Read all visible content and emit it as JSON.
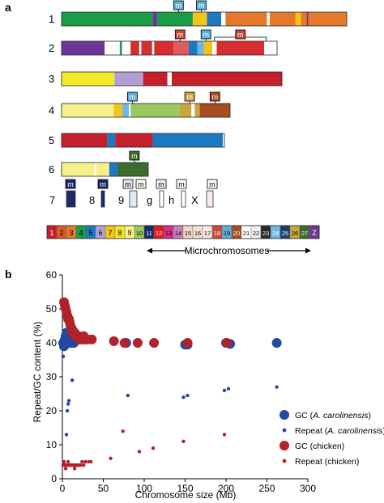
{
  "panel_a": {
    "label": "a",
    "chromosomes": [
      {
        "label": "1",
        "segments": [
          [
            "#1a9d47",
            0,
            0.32
          ],
          [
            "#6f3399",
            0.32,
            0.335
          ],
          [
            "#1a9d47",
            0.335,
            0.46
          ],
          [
            "#f2c31a",
            0.46,
            0.51
          ],
          [
            "#1d78c2",
            0.51,
            0.56
          ],
          [
            "#ffffff",
            0.56,
            0.575
          ],
          [
            "#e6782b",
            0.575,
            1.0
          ],
          [
            "#ffffff",
            0.72,
            0.73
          ],
          [
            "#f2c31a",
            0.82,
            0.84
          ],
          [
            "#6f3399",
            0.86,
            0.865
          ]
        ]
      },
      {
        "label": "2",
        "segments": [
          [
            "#6f3399",
            0,
            0.2
          ],
          [
            "#ffffff",
            0.2,
            0.21
          ],
          [
            "#1a9d47",
            0.27,
            0.28
          ],
          [
            "#ffffff",
            0.31,
            0.32
          ],
          [
            "#d62e2e",
            0.32,
            0.52
          ],
          [
            "#ffffff",
            0.36,
            0.37
          ],
          [
            "#ffffff",
            0.42,
            0.43
          ],
          [
            "#e45a5a",
            0.52,
            0.59
          ],
          [
            "#1d78c2",
            0.59,
            0.63
          ],
          [
            "#6fb7e6",
            0.63,
            0.66
          ],
          [
            "#f2c31a",
            0.66,
            0.7
          ],
          [
            "#ffffff",
            0.7,
            0.72
          ],
          [
            "#d62e2e",
            0.72,
            0.94
          ],
          [
            "#ffffff",
            0.94,
            1.0
          ]
        ]
      },
      {
        "label": "3",
        "segments": [
          [
            "#f4e82a",
            0,
            0.24
          ],
          [
            "#b29fd1",
            0.24,
            0.37
          ],
          [
            "#c3202b",
            0.37,
            1.0
          ],
          [
            "#ffffff",
            0.48,
            0.5
          ]
        ]
      },
      {
        "label": "4",
        "segments": [
          [
            "#f6f08a",
            0,
            0.31
          ],
          [
            "#f2c31a",
            0.31,
            0.36
          ],
          [
            "#6fb7e6",
            0.36,
            0.4
          ],
          [
            "#ffffff",
            0.4,
            0.41
          ],
          [
            "#9ac85c",
            0.41,
            0.7
          ],
          [
            "#c9a640",
            0.7,
            0.82
          ],
          [
            "#a64d22",
            0.82,
            1.0
          ],
          [
            "#ffffff",
            0.77,
            0.79
          ]
        ]
      },
      {
        "label": "5",
        "segments": [
          [
            "#c3202b",
            0,
            0.28
          ],
          [
            "#1d78c2",
            0.28,
            0.33
          ],
          [
            "#c3202b",
            0.33,
            0.56
          ],
          [
            "#1d78c2",
            0.56,
            0.99
          ],
          [
            "#ffffff",
            0.99,
            1.0
          ]
        ]
      },
      {
        "label": "6",
        "segments": [
          [
            "#f6f08a",
            0,
            0.38
          ],
          [
            "#ffffff",
            0.38,
            0.4
          ],
          [
            "#f6f08a",
            0.4,
            0.55
          ],
          [
            "#1d78c2",
            0.55,
            0.65
          ],
          [
            "#3c6b2c",
            0.65,
            1.0
          ]
        ]
      }
    ],
    "labels_row7": [
      "7",
      "8",
      "9",
      "g",
      "h",
      "X"
    ],
    "legend_labels": [
      "1",
      "2",
      "3",
      "4",
      "5",
      "6",
      "7",
      "8",
      "9",
      "10",
      "11",
      "12",
      "13",
      "14",
      "15",
      "16",
      "17",
      "18",
      "19",
      "20",
      "21",
      "22",
      "23",
      "24",
      "25",
      "26",
      "27",
      "Z"
    ],
    "legend_colors": [
      "#c3202b",
      "#d85a28",
      "#e6782b",
      "#1a9d47",
      "#1d78c2",
      "#b29fd1",
      "#f2c31a",
      "#f4e82a",
      "#f6f08a",
      "#9ac85c",
      "#1b2a6b",
      "#e31a1c",
      "#d62e8a",
      "#c77dbb",
      "#f2d6c8",
      "#f9e0d0",
      "#fbe8e8",
      "#c94a3a",
      "#5ab0d9",
      "#a64d22",
      "#ffffff",
      "#f0f0f0",
      "#2a2a2a",
      "#6fb7e6",
      "#1d3f6e",
      "#c9a640",
      "#3c6b2c",
      "#6f3399"
    ],
    "legend_light_text": [
      0,
      10,
      11,
      17,
      19,
      22,
      23,
      24,
      26,
      27
    ],
    "marker_letter": "m",
    "microchromosomes_label": "Microchromosomes"
  },
  "panel_b": {
    "label": "b",
    "ylabel": "Repeat/GC content (%)",
    "xlabel": "Chromosome size (Mb)",
    "legend": [
      {
        "label": "GC (",
        "italic": "A. carolinensis",
        "tail": ")",
        "color": "#2349a0",
        "size": "large"
      },
      {
        "label": "Repeat (",
        "italic": "A. carolinensis",
        "tail": ")",
        "color": "#2349a0",
        "size": "small"
      },
      {
        "label": "GC (chicken)",
        "italic": "",
        "tail": "",
        "color": "#b2222b",
        "size": "large"
      },
      {
        "label": "Repeat (chicken)",
        "italic": "",
        "tail": "",
        "color": "#b2222b",
        "size": "small"
      }
    ]
  },
  "chart_data": {
    "type": "scatter",
    "xlabel": "Chromosome size (Mb)",
    "ylabel": "Repeat/GC content (%)",
    "xlim": [
      0,
      300
    ],
    "ylim": [
      0,
      60
    ],
    "xticks": [
      0,
      50,
      100,
      150,
      200,
      250,
      300
    ],
    "yticks": [
      0,
      10,
      20,
      30,
      40,
      50,
      60
    ],
    "legend_position": "bottom-right",
    "series": [
      {
        "name": "GC (A. carolinensis)",
        "color": "#2349a0",
        "marker": "large",
        "x": [
          1,
          2,
          3,
          4,
          5,
          6,
          7,
          8,
          9,
          10,
          12,
          14,
          78,
          150,
          153,
          200,
          205,
          262
        ],
        "y": [
          40,
          39,
          41,
          42,
          43,
          41,
          42,
          43,
          40,
          41,
          40,
          40,
          40,
          39.5,
          39.5,
          40,
          39.7,
          40
        ]
      },
      {
        "name": "Repeat (A. carolinensis)",
        "color": "#2349a0",
        "marker": "small",
        "x": [
          1,
          3,
          5,
          6,
          7,
          8,
          12,
          80,
          148,
          153,
          198,
          203,
          262
        ],
        "y": [
          36,
          40,
          13,
          20,
          22,
          23,
          29,
          24.5,
          24,
          24.5,
          26,
          26.5,
          27
        ]
      },
      {
        "name": "GC (chicken)",
        "color": "#b2222b",
        "marker": "large",
        "x": [
          2,
          3,
          4,
          5,
          6,
          7,
          8,
          9,
          10,
          11,
          12,
          13,
          14,
          15,
          16,
          17,
          18,
          19,
          20,
          21,
          22,
          23,
          24,
          26,
          28,
          31,
          36,
          63,
          76,
          92,
          112,
          153,
          201
        ],
        "y": [
          52,
          51,
          50,
          49,
          48,
          47,
          47,
          46,
          45,
          44,
          44,
          43,
          43,
          43,
          42,
          42,
          42,
          42,
          42,
          41,
          41,
          41,
          41,
          42,
          41,
          41,
          41,
          40.5,
          40,
          40,
          40,
          40,
          40
        ]
      },
      {
        "name": "Repeat (chicken)",
        "color": "#b2222b",
        "marker": "small",
        "x": [
          1,
          2,
          3,
          4,
          5,
          6,
          7,
          8,
          9,
          10,
          11,
          12,
          13,
          14,
          15,
          16,
          17,
          18,
          19,
          20,
          22,
          24,
          26,
          28,
          32,
          35,
          59,
          74,
          94,
          111,
          148,
          198
        ],
        "y": [
          4,
          5,
          4,
          3,
          4,
          4,
          5,
          4,
          4,
          4,
          4,
          4,
          4,
          4,
          3,
          4,
          4,
          4,
          4,
          4,
          4,
          5,
          4,
          5,
          5,
          5,
          6,
          14,
          8,
          9,
          11,
          13
        ]
      }
    ]
  }
}
